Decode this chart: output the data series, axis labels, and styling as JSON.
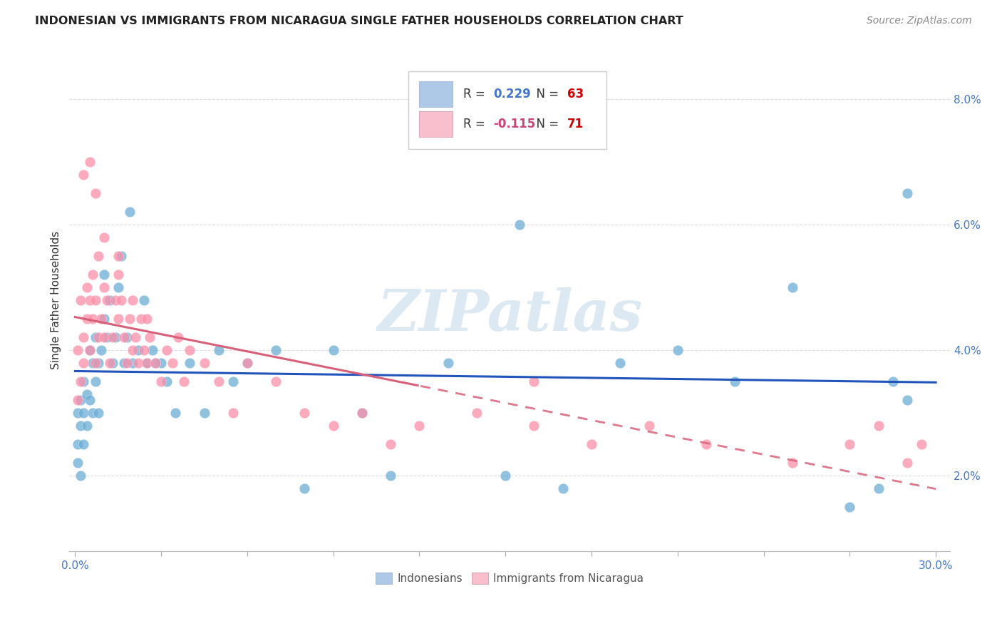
{
  "title": "INDONESIAN VS IMMIGRANTS FROM NICARAGUA SINGLE FATHER HOUSEHOLDS CORRELATION CHART",
  "source": "Source: ZipAtlas.com",
  "ylabel": "Single Father Households",
  "ytick_labels": [
    "2.0%",
    "4.0%",
    "6.0%",
    "8.0%"
  ],
  "ytick_values": [
    0.02,
    0.04,
    0.06,
    0.08
  ],
  "xlim": [
    -0.002,
    0.305
  ],
  "ylim": [
    0.008,
    0.088
  ],
  "indonesian_color": "#6baed6",
  "nicaraguan_color": "#fc8fa9",
  "indonesian_legend_color": "#aec9e8",
  "nicaraguan_legend_color": "#f9bfcc",
  "trendline1_color": "#2255bb",
  "trendline2_color": "#d9607a",
  "watermark": "ZIPatlas",
  "watermark_color": "#dce8f2",
  "r1": "0.229",
  "n1": "63",
  "r2": "-0.115",
  "n2": "71",
  "r_color1": "#4477cc",
  "r_color2": "#cc4477",
  "n_color": "#cc0000",
  "title_color": "#222222",
  "source_color": "#888888",
  "ylabel_color": "#333333",
  "tick_color": "#4477cc",
  "grid_color": "#dddddd",
  "indonesian_x": [
    0.001,
    0.001,
    0.001,
    0.002,
    0.002,
    0.002,
    0.003,
    0.003,
    0.003,
    0.004,
    0.004,
    0.005,
    0.005,
    0.006,
    0.006,
    0.007,
    0.007,
    0.008,
    0.008,
    0.009,
    0.01,
    0.01,
    0.011,
    0.012,
    0.013,
    0.014,
    0.015,
    0.016,
    0.017,
    0.018,
    0.019,
    0.02,
    0.022,
    0.024,
    0.025,
    0.027,
    0.03,
    0.032,
    0.035,
    0.04,
    0.045,
    0.05,
    0.055,
    0.06,
    0.07,
    0.08,
    0.09,
    0.1,
    0.11,
    0.13,
    0.15,
    0.17,
    0.19,
    0.21,
    0.23,
    0.25,
    0.27,
    0.28,
    0.285,
    0.29,
    0.028,
    0.155,
    0.29
  ],
  "indonesian_y": [
    0.03,
    0.025,
    0.022,
    0.032,
    0.028,
    0.02,
    0.035,
    0.03,
    0.025,
    0.033,
    0.028,
    0.04,
    0.032,
    0.038,
    0.03,
    0.042,
    0.035,
    0.038,
    0.03,
    0.04,
    0.052,
    0.045,
    0.042,
    0.048,
    0.038,
    0.042,
    0.05,
    0.055,
    0.038,
    0.042,
    0.062,
    0.038,
    0.04,
    0.048,
    0.038,
    0.04,
    0.038,
    0.035,
    0.03,
    0.038,
    0.03,
    0.04,
    0.035,
    0.038,
    0.04,
    0.018,
    0.04,
    0.03,
    0.02,
    0.038,
    0.02,
    0.018,
    0.038,
    0.04,
    0.035,
    0.05,
    0.015,
    0.018,
    0.035,
    0.065,
    0.038,
    0.06,
    0.032
  ],
  "nicaraguan_x": [
    0.001,
    0.001,
    0.002,
    0.002,
    0.003,
    0.003,
    0.004,
    0.004,
    0.005,
    0.005,
    0.006,
    0.006,
    0.007,
    0.007,
    0.008,
    0.008,
    0.009,
    0.01,
    0.01,
    0.011,
    0.012,
    0.013,
    0.014,
    0.015,
    0.015,
    0.016,
    0.017,
    0.018,
    0.019,
    0.02,
    0.021,
    0.022,
    0.023,
    0.024,
    0.025,
    0.026,
    0.028,
    0.03,
    0.032,
    0.034,
    0.036,
    0.038,
    0.04,
    0.045,
    0.05,
    0.055,
    0.06,
    0.07,
    0.08,
    0.09,
    0.1,
    0.11,
    0.12,
    0.14,
    0.16,
    0.18,
    0.2,
    0.22,
    0.25,
    0.27,
    0.28,
    0.29,
    0.295,
    0.003,
    0.005,
    0.007,
    0.01,
    0.015,
    0.02,
    0.025,
    0.16
  ],
  "nicaraguan_y": [
    0.032,
    0.04,
    0.035,
    0.048,
    0.042,
    0.038,
    0.05,
    0.045,
    0.048,
    0.04,
    0.045,
    0.052,
    0.038,
    0.048,
    0.042,
    0.055,
    0.045,
    0.05,
    0.042,
    0.048,
    0.038,
    0.042,
    0.048,
    0.052,
    0.045,
    0.048,
    0.042,
    0.038,
    0.045,
    0.04,
    0.042,
    0.038,
    0.045,
    0.04,
    0.038,
    0.042,
    0.038,
    0.035,
    0.04,
    0.038,
    0.042,
    0.035,
    0.04,
    0.038,
    0.035,
    0.03,
    0.038,
    0.035,
    0.03,
    0.028,
    0.03,
    0.025,
    0.028,
    0.03,
    0.028,
    0.025,
    0.028,
    0.025,
    0.022,
    0.025,
    0.028,
    0.022,
    0.025,
    0.068,
    0.07,
    0.065,
    0.058,
    0.055,
    0.048,
    0.045,
    0.035
  ]
}
